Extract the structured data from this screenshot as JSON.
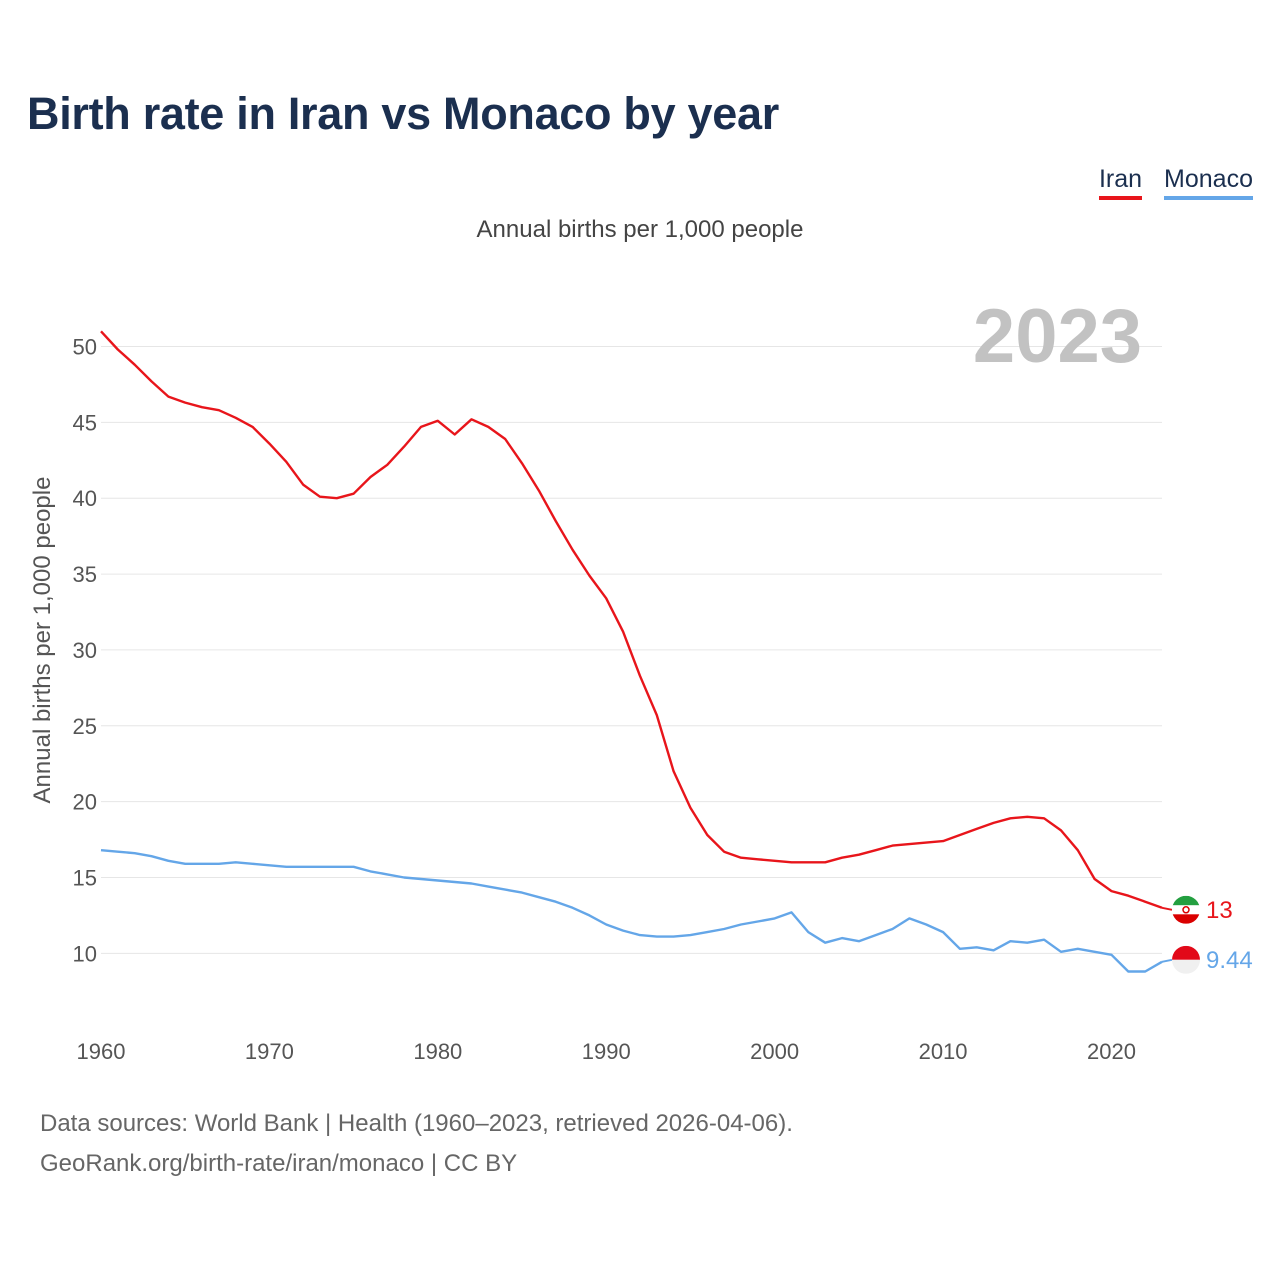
{
  "title": "Birth rate in Iran vs Monaco by year",
  "subtitle": "Annual births per 1,000 people",
  "legend": [
    {
      "name": "Iran",
      "color": "#e8151b"
    },
    {
      "name": "Monaco",
      "color": "#64a6e8"
    }
  ],
  "footer": {
    "line1": "Data sources: World Bank | Health (1960–2023, retrieved 2026-04-06).",
    "line2": "GeoRank.org/birth-rate/iran/monaco | CC BY"
  },
  "chart_data": {
    "type": "line",
    "title": "Birth rate in Iran vs Monaco by year",
    "xlabel": "",
    "ylabel": "Annual births per 1,000 people",
    "year_label": "2023",
    "xlim": [
      1960,
      2023
    ],
    "ylim": [
      6,
      53
    ],
    "x_ticks": [
      1960,
      1970,
      1980,
      1990,
      2000,
      2010,
      2020
    ],
    "y_ticks": [
      10,
      15,
      20,
      25,
      30,
      35,
      40,
      45,
      50
    ],
    "x": [
      1960,
      1961,
      1962,
      1963,
      1964,
      1965,
      1966,
      1967,
      1968,
      1969,
      1970,
      1971,
      1972,
      1973,
      1974,
      1975,
      1976,
      1977,
      1978,
      1979,
      1980,
      1981,
      1982,
      1983,
      1984,
      1985,
      1986,
      1987,
      1988,
      1989,
      1990,
      1991,
      1992,
      1993,
      1994,
      1995,
      1996,
      1997,
      1998,
      1999,
      2000,
      2001,
      2002,
      2003,
      2004,
      2005,
      2006,
      2007,
      2008,
      2009,
      2010,
      2011,
      2012,
      2013,
      2014,
      2015,
      2016,
      2017,
      2018,
      2019,
      2020,
      2021,
      2022,
      2023
    ],
    "series": [
      {
        "name": "Iran",
        "color": "#e8151b",
        "end_label": "13",
        "values": [
          51.0,
          49.8,
          48.8,
          47.7,
          46.7,
          46.3,
          46.0,
          45.8,
          45.3,
          44.7,
          43.6,
          42.4,
          40.9,
          40.1,
          40.0,
          40.3,
          41.4,
          42.2,
          43.4,
          44.7,
          45.1,
          44.2,
          45.2,
          44.7,
          43.9,
          42.3,
          40.5,
          38.5,
          36.6,
          34.9,
          33.4,
          31.2,
          28.3,
          25.7,
          22.0,
          19.6,
          17.8,
          16.7,
          16.3,
          16.2,
          16.1,
          16.0,
          16.0,
          16.0,
          16.3,
          16.5,
          16.8,
          17.1,
          17.2,
          17.3,
          17.4,
          17.8,
          18.2,
          18.6,
          18.9,
          19.0,
          18.9,
          18.1,
          16.8,
          14.9,
          14.1,
          13.8,
          13.4,
          13.0
        ]
      },
      {
        "name": "Monaco",
        "color": "#64a6e8",
        "end_label": "9.44",
        "values": [
          16.8,
          16.7,
          16.6,
          16.4,
          16.1,
          15.9,
          15.9,
          15.9,
          16.0,
          15.9,
          15.8,
          15.7,
          15.7,
          15.7,
          15.7,
          15.7,
          15.4,
          15.2,
          15.0,
          14.9,
          14.8,
          14.7,
          14.6,
          14.4,
          14.2,
          14.0,
          13.7,
          13.4,
          13.0,
          12.5,
          11.9,
          11.5,
          11.2,
          11.1,
          11.1,
          11.2,
          11.4,
          11.6,
          11.9,
          12.1,
          12.3,
          12.7,
          11.4,
          10.7,
          11.0,
          10.8,
          11.2,
          11.6,
          12.3,
          11.9,
          11.4,
          10.3,
          10.4,
          10.2,
          10.8,
          10.7,
          10.9,
          10.1,
          10.3,
          10.1,
          9.9,
          8.8,
          8.8,
          9.44
        ]
      }
    ]
  }
}
